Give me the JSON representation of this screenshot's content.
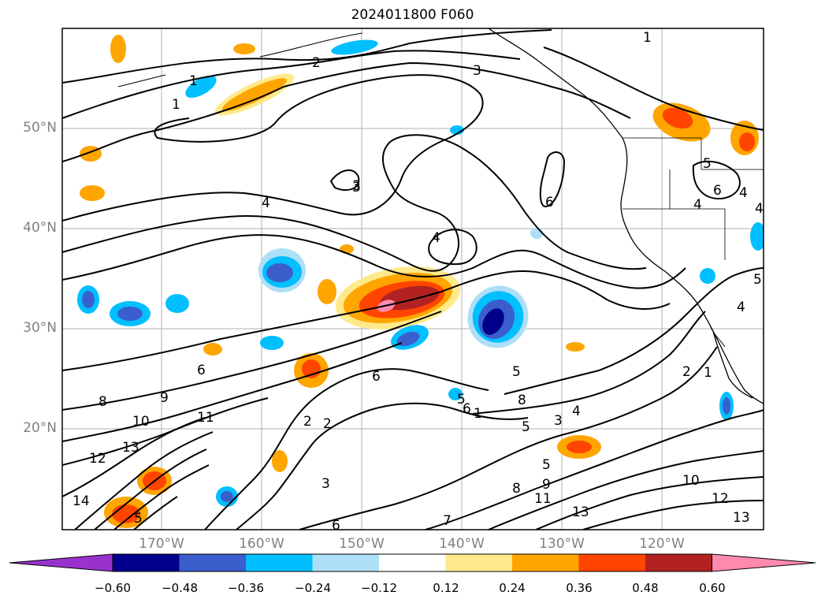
{
  "title": "2024011800 F060",
  "lat_labels": [
    "50°N",
    "40°N",
    "30°N",
    "20°N"
  ],
  "lon_labels": [
    "170°W",
    "160°W",
    "150°W",
    "140°W",
    "130°W",
    "120°W"
  ],
  "colorbar": {
    "ticks": [
      "−0.60",
      "−0.48",
      "−0.36",
      "−0.24",
      "−0.12",
      "0.12",
      "0.24",
      "0.36",
      "0.48",
      "0.60"
    ],
    "colors": [
      "#9932CC",
      "#00008B",
      "#3A5FCD",
      "#00BFFF",
      "#ADDFF7",
      "#FFFFFF",
      "#FFE98A",
      "#FFA500",
      "#FF4500",
      "#B22222",
      "#FF8AAE"
    ]
  },
  "contour_labels": [
    "1",
    "2",
    "3",
    "1",
    "1",
    "3",
    "4",
    "3",
    "6",
    "4",
    "5",
    "6",
    "4",
    "5",
    "5",
    "4",
    "4",
    "6",
    "8",
    "9",
    "10",
    "11",
    "12",
    "13",
    "14",
    "6",
    "5",
    "6",
    "1",
    "8",
    "3",
    "4",
    "5",
    "2",
    "1",
    "2",
    "2",
    "3",
    "5",
    "9",
    "8",
    "11",
    "10",
    "12",
    "13",
    "13",
    "7",
    "6",
    "4",
    "5"
  ]
}
